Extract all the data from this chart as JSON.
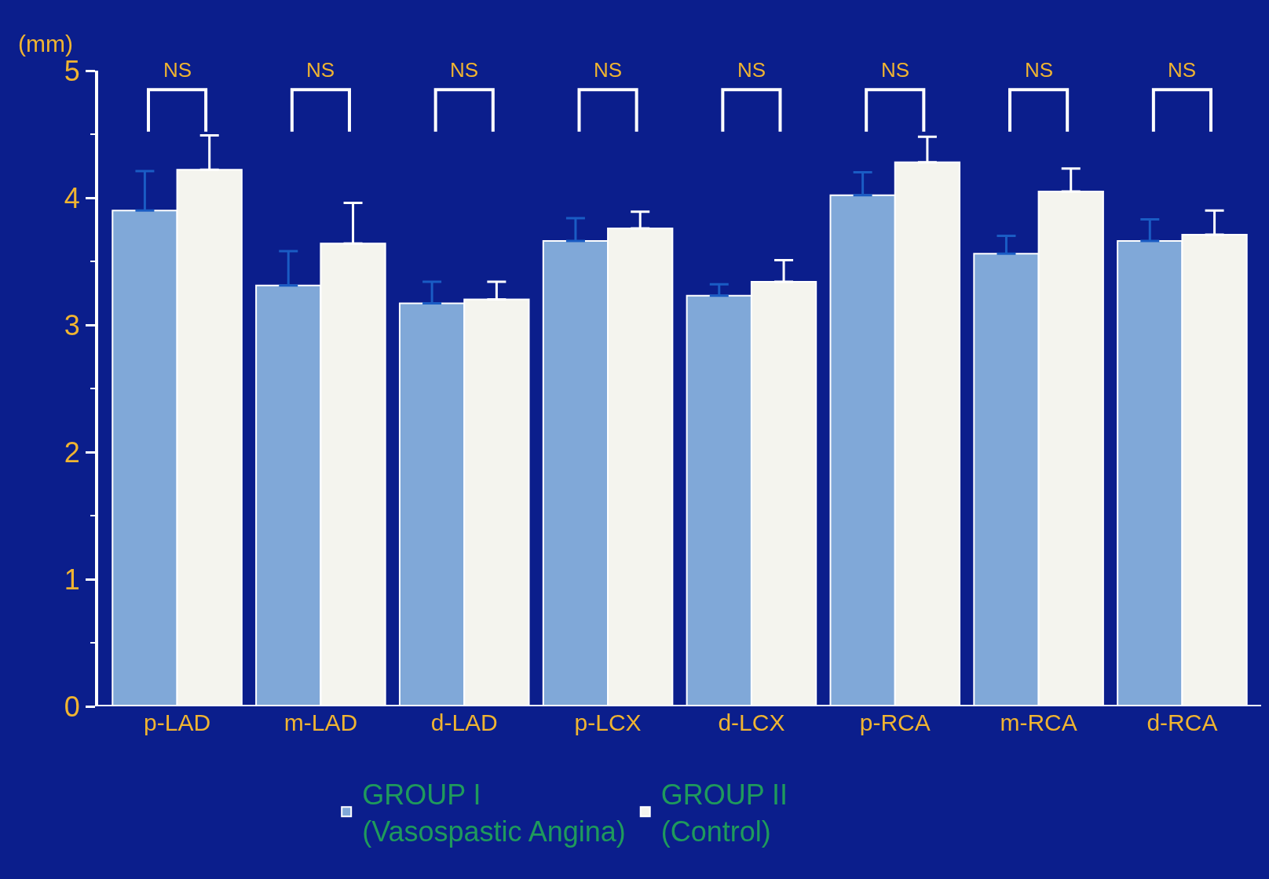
{
  "chart_data": {
    "type": "bar",
    "ylabel": "(mm)",
    "categories": [
      "p-LAD",
      "m-LAD",
      "d-LAD",
      "p-LCX",
      "d-LCX",
      "p-RCA",
      "m-RCA",
      "d-RCA"
    ],
    "series": [
      {
        "name": "GROUP I\n(Vasospastic Angina)",
        "color": "#80a8d8",
        "values": [
          3.9,
          3.31,
          3.17,
          3.66,
          3.23,
          4.02,
          3.56,
          3.66
        ],
        "errors": [
          [
            3.9,
            4.21
          ],
          [
            3.31,
            3.58
          ],
          [
            3.17,
            3.34
          ],
          [
            3.66,
            3.84
          ],
          [
            3.23,
            3.32
          ],
          [
            4.02,
            4.2
          ],
          [
            3.56,
            3.7
          ],
          [
            3.66,
            3.83
          ]
        ]
      },
      {
        "name": "GROUP II\n(Control)",
        "color": "#f4f4ee",
        "values": [
          4.22,
          3.64,
          3.2,
          3.76,
          3.34,
          4.28,
          4.05,
          3.71
        ],
        "errors": [
          [
            4.22,
            4.49
          ],
          [
            3.64,
            3.96
          ],
          [
            3.2,
            3.34
          ],
          [
            3.76,
            3.89
          ],
          [
            3.34,
            3.51
          ],
          [
            4.28,
            4.48
          ],
          [
            4.05,
            4.23
          ],
          [
            3.71,
            3.9
          ]
        ]
      }
    ],
    "ylim": [
      0,
      5
    ],
    "yticks": [
      0,
      1,
      2,
      3,
      4,
      5
    ],
    "grid": false,
    "legend": "bottom",
    "annotations": [
      "NS",
      "NS",
      "NS",
      "NS",
      "NS",
      "NS",
      "NS",
      "NS"
    ]
  }
}
